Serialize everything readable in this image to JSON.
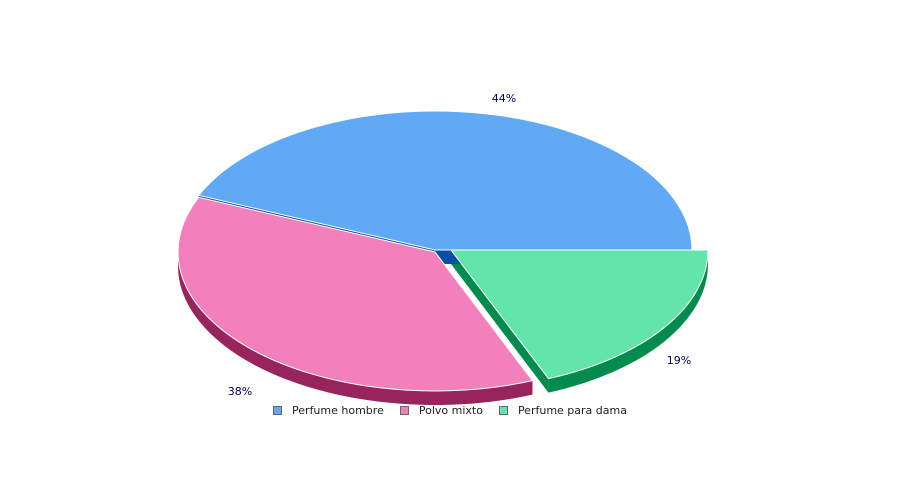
{
  "chart_data": {
    "type": "pie",
    "categories": [
      "Perfume hombre",
      "Polvo mixto",
      "Perfume para dama"
    ],
    "values": [
      44,
      38,
      19
    ],
    "value_labels": [
      "44%",
      "38%",
      "19%"
    ],
    "colors": {
      "top": [
        "#62a9f5",
        "#f280bb",
        "#63e4aa"
      ],
      "side": [
        "#0a4fa3",
        "#98245d",
        "#038a4f"
      ]
    },
    "legend_position": "bottom",
    "style": "3d-exploded"
  }
}
